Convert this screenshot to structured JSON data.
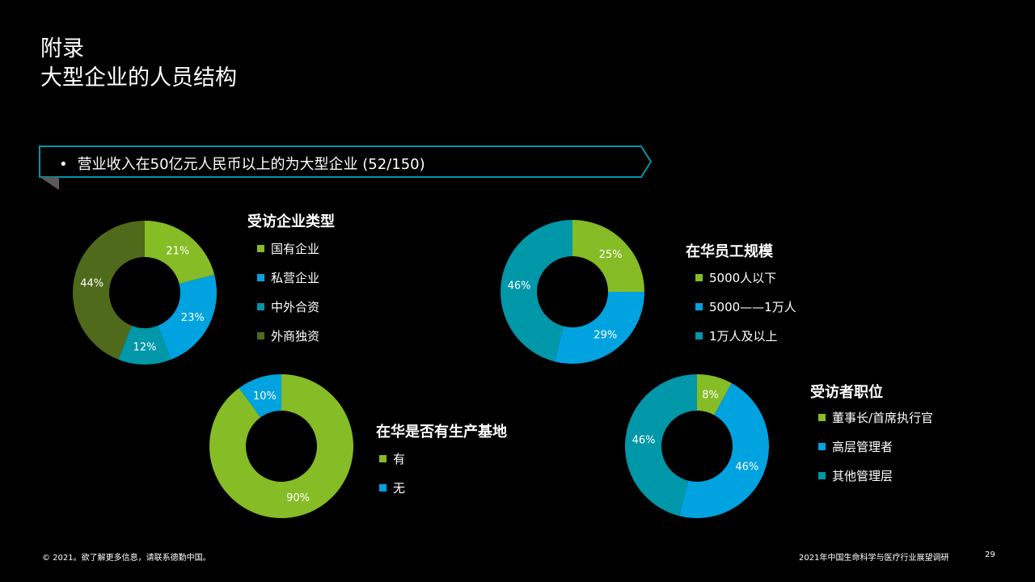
{
  "title_line1": "附录",
  "title_line2": "大型企业的人员结构",
  "callout": {
    "bullet": "•",
    "text": "营业收入在50亿元人民币以上的为大型企业 (52/150)"
  },
  "colors": {
    "green": "#86BC25",
    "blue": "#00A3E0",
    "teal": "#0097A9",
    "olive": "#4F6A1A",
    "callout_border": "#0097A9"
  },
  "chart_data": [
    {
      "type": "pie",
      "title": "受访企业类型",
      "categories": [
        "国有企业",
        "私营企业",
        "中外合资",
        "外商独资"
      ],
      "values": [
        21,
        23,
        12,
        44
      ],
      "labels": [
        "21%",
        "23%",
        "12%",
        "44%"
      ],
      "colors": [
        "#86BC25",
        "#00A3E0",
        "#0097A9",
        "#4F6A1A"
      ],
      "legend": "right"
    },
    {
      "type": "pie",
      "title": "在华员工规模",
      "categories": [
        "5000人以下",
        "5000——1万人",
        "1万人及以上"
      ],
      "values": [
        25,
        29,
        46
      ],
      "labels": [
        "25%",
        "29%",
        "46%"
      ],
      "colors": [
        "#86BC25",
        "#00A3E0",
        "#0097A9"
      ],
      "legend": "right"
    },
    {
      "type": "pie",
      "title": "在华是否有生产基地",
      "categories": [
        "有",
        "无"
      ],
      "values": [
        90,
        10
      ],
      "labels": [
        "90%",
        "10%"
      ],
      "colors": [
        "#86BC25",
        "#00A3E0"
      ],
      "legend": "right"
    },
    {
      "type": "pie",
      "title": "受访者职位",
      "categories": [
        "董事长/首席执行官",
        "高层管理者",
        "其他管理层"
      ],
      "values": [
        8,
        46,
        46
      ],
      "labels": [
        "8%",
        "46%",
        "46%"
      ],
      "colors": [
        "#86BC25",
        "#00A3E0",
        "#0097A9"
      ],
      "legend": "right"
    }
  ],
  "footer": {
    "left": "© 2021。欲了解更多信息，请联系德勤中国。",
    "right": "2021年中国生命科学与医疗行业展望调研",
    "page": "29"
  }
}
